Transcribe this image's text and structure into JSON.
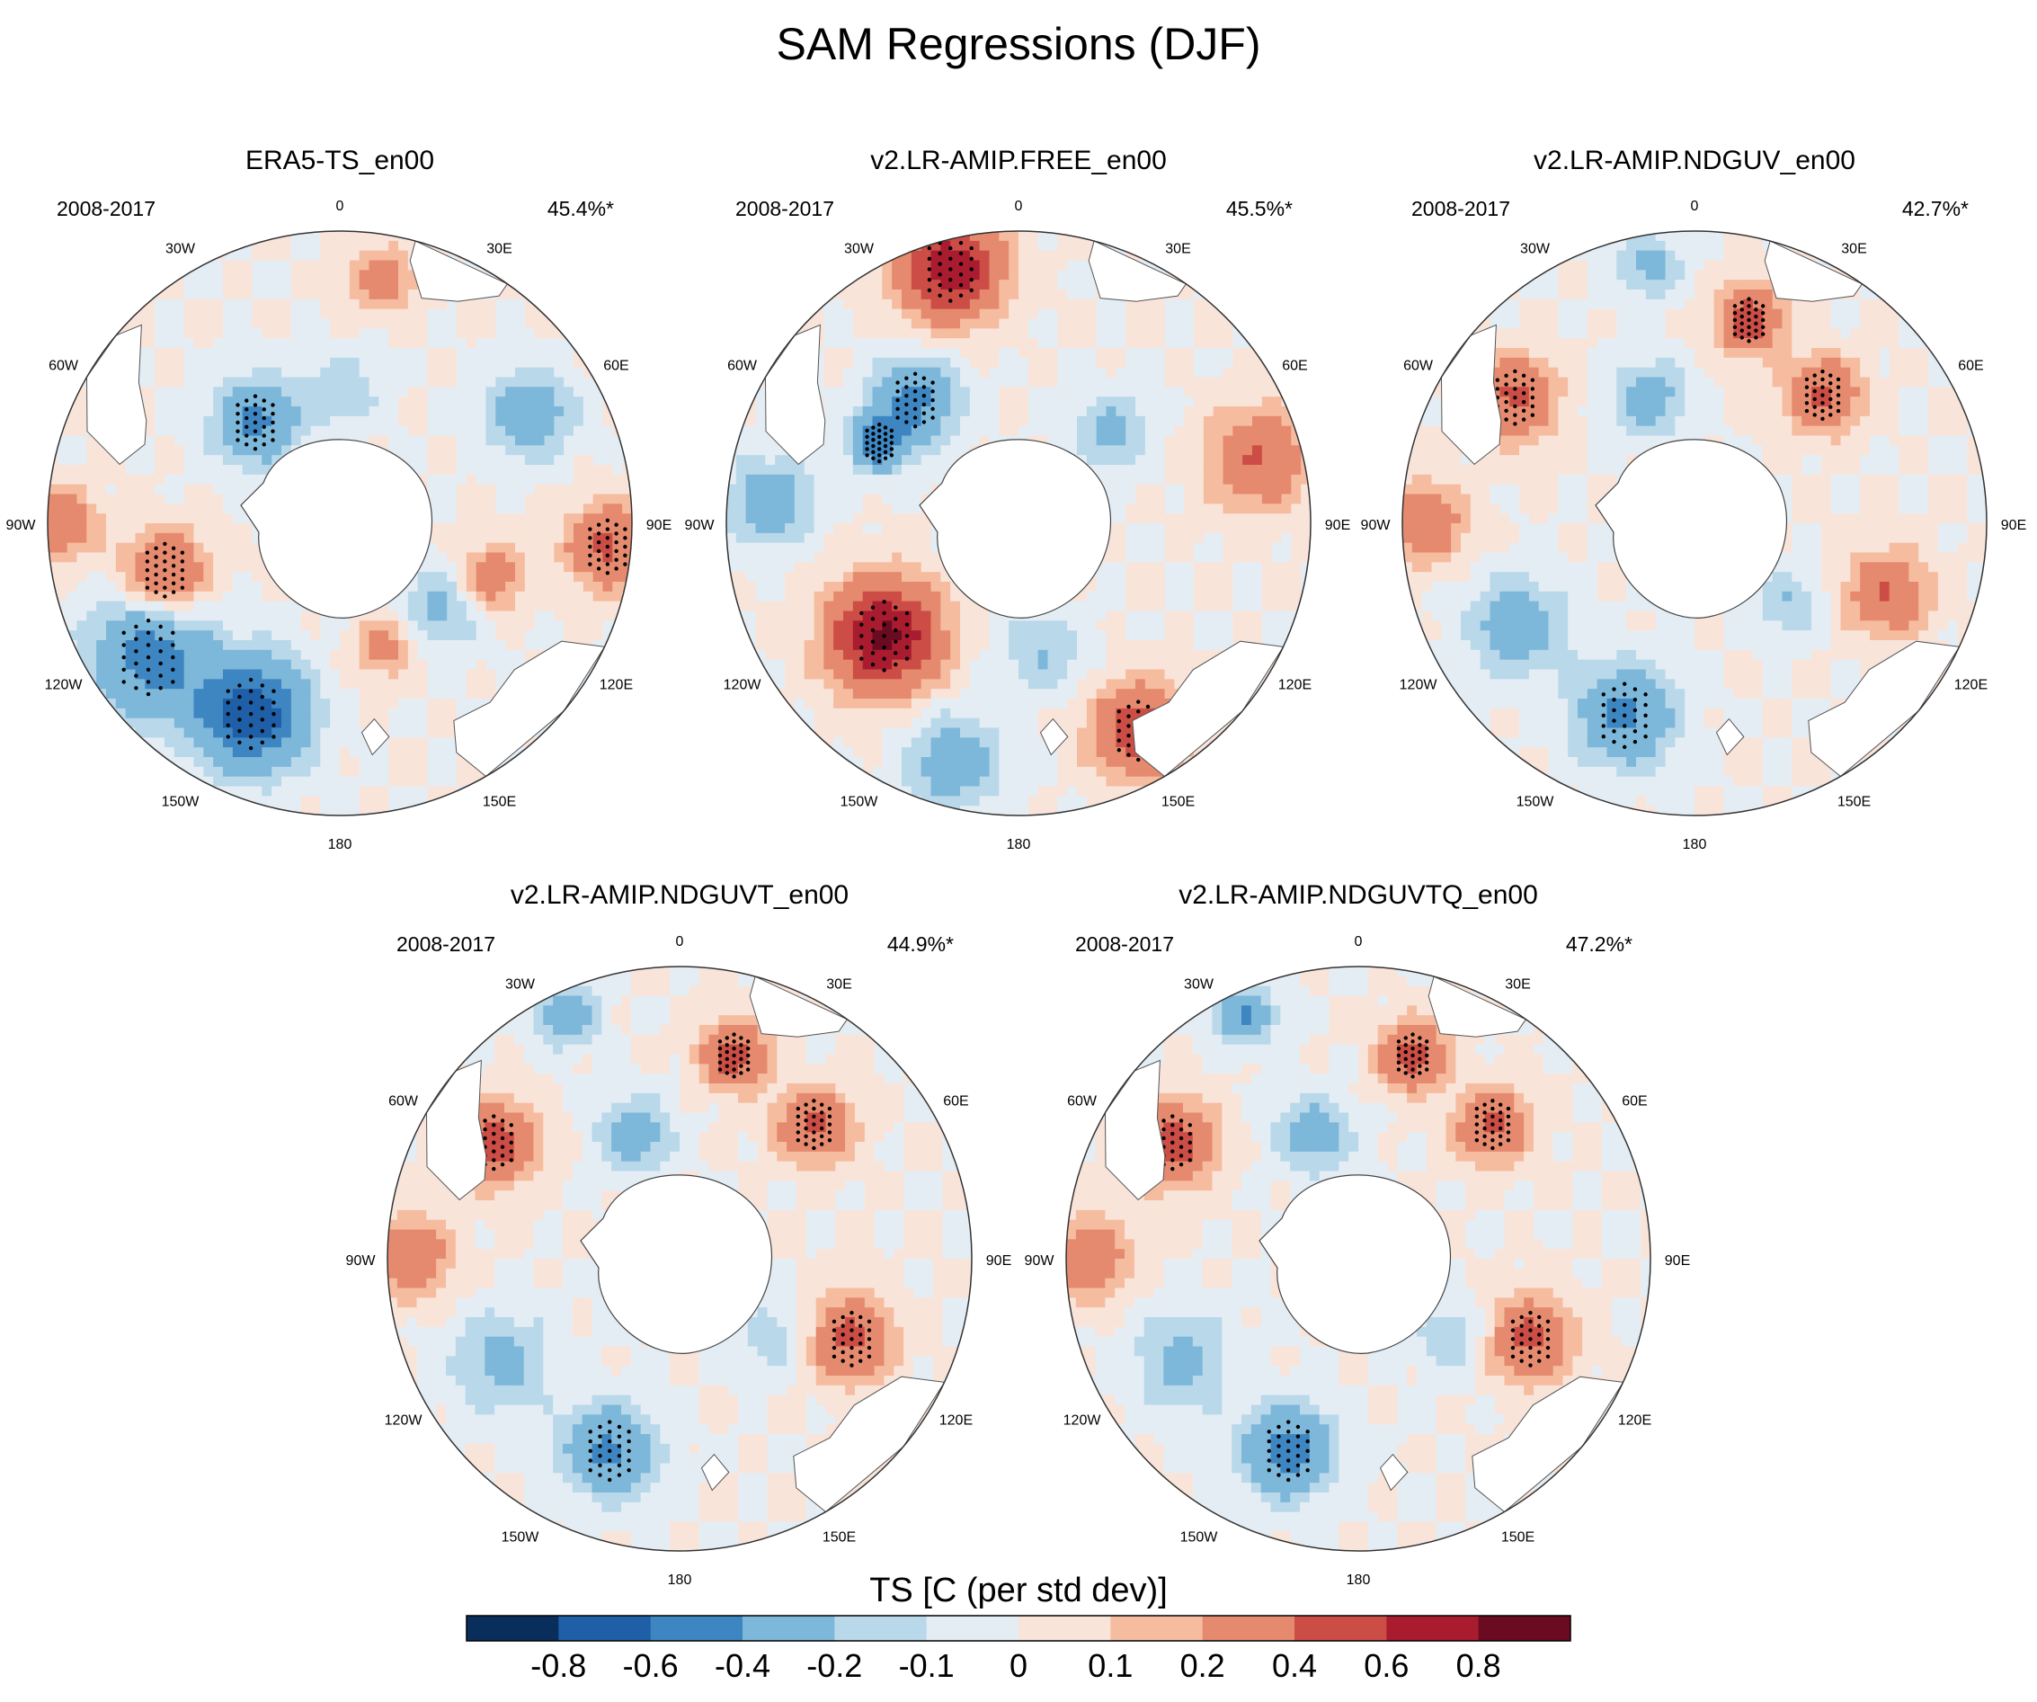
{
  "figure": {
    "title": "SAM Regressions (DJF)",
    "colorbar": {
      "label": "TS [C (per std dev)]",
      "colors": [
        "#0a2e5c",
        "#1f5fa8",
        "#3d86c2",
        "#7db7d9",
        "#b9d8ea",
        "#e4edf4",
        "#f9e4da",
        "#f6bca0",
        "#e58a6e",
        "#cc4d45",
        "#a91c2f",
        "#6a0b21"
      ],
      "tick_labels": [
        "-0.8",
        "-0.6",
        "-0.4",
        "-0.2",
        "-0.1",
        "0",
        "0.1",
        "0.2",
        "0.4",
        "0.6",
        "0.8"
      ]
    },
    "lon_labels": [
      "0",
      "30E",
      "60E",
      "90E",
      "120E",
      "150E",
      "180",
      "150W",
      "120W",
      "90W",
      "60W",
      "30W"
    ],
    "panels": [
      {
        "title": "ERA5-TS_en00",
        "period": "2008-2017",
        "pct": "45.4%*",
        "blobs": [
          {
            "lon": -105,
            "r": 0.62,
            "s": 0.1,
            "v": 0.45
          },
          {
            "lon": -155,
            "r": 0.72,
            "s": 0.13,
            "v": -0.75
          },
          {
            "lon": -125,
            "r": 0.8,
            "s": 0.14,
            "v": -0.5
          },
          {
            "lon": -40,
            "r": 0.45,
            "s": 0.1,
            "v": -0.45
          },
          {
            "lon": 60,
            "r": 0.75,
            "s": 0.1,
            "v": -0.35
          },
          {
            "lon": 95,
            "r": 0.92,
            "s": 0.1,
            "v": 0.45
          },
          {
            "lon": 110,
            "r": 0.55,
            "s": 0.08,
            "v": 0.35
          },
          {
            "lon": 130,
            "r": 0.45,
            "s": 0.1,
            "v": -0.25
          },
          {
            "lon": 10,
            "r": 0.85,
            "s": 0.08,
            "v": 0.3
          },
          {
            "lon": -90,
            "r": 0.95,
            "s": 0.08,
            "v": 0.4
          },
          {
            "lon": 160,
            "r": 0.45,
            "s": 0.07,
            "v": 0.3
          },
          {
            "lon": 0,
            "r": 0.45,
            "s": 0.09,
            "v": -0.2
          }
        ]
      },
      {
        "title": "v2.LR-AMIP.FREE_en00",
        "period": "2008-2017",
        "pct": "45.5%*",
        "blobs": [
          {
            "lon": -15,
            "r": 0.9,
            "s": 0.12,
            "v": 0.75
          },
          {
            "lon": -130,
            "r": 0.6,
            "s": 0.13,
            "v": 0.85
          },
          {
            "lon": 150,
            "r": 0.82,
            "s": 0.11,
            "v": 0.55
          },
          {
            "lon": 75,
            "r": 0.85,
            "s": 0.12,
            "v": 0.4
          },
          {
            "lon": -40,
            "r": 0.55,
            "s": 0.1,
            "v": -0.45
          },
          {
            "lon": -85,
            "r": 0.85,
            "s": 0.1,
            "v": -0.35
          },
          {
            "lon": -165,
            "r": 0.85,
            "s": 0.12,
            "v": -0.3
          },
          {
            "lon": 170,
            "r": 0.45,
            "s": 0.1,
            "v": -0.2
          },
          {
            "lon": 45,
            "r": 0.45,
            "s": 0.09,
            "v": -0.25
          },
          {
            "lon": -60,
            "r": 0.55,
            "s": 0.07,
            "v": -0.5
          }
        ]
      },
      {
        "title": "v2.LR-AMIP.NDGUV_en00",
        "period": "2008-2017",
        "pct": "42.7%*",
        "blobs": [
          {
            "lon": -160,
            "r": 0.7,
            "s": 0.12,
            "v": -0.45
          },
          {
            "lon": -120,
            "r": 0.7,
            "s": 0.12,
            "v": -0.3
          },
          {
            "lon": -55,
            "r": 0.75,
            "s": 0.1,
            "v": 0.45
          },
          {
            "lon": 15,
            "r": 0.72,
            "s": 0.08,
            "v": 0.5
          },
          {
            "lon": 45,
            "r": 0.62,
            "s": 0.09,
            "v": 0.45
          },
          {
            "lon": 110,
            "r": 0.7,
            "s": 0.1,
            "v": 0.4
          },
          {
            "lon": -90,
            "r": 0.92,
            "s": 0.1,
            "v": 0.35
          },
          {
            "lon": -20,
            "r": 0.45,
            "s": 0.09,
            "v": -0.3
          },
          {
            "lon": 130,
            "r": 0.42,
            "s": 0.08,
            "v": -0.2
          },
          {
            "lon": -10,
            "r": 0.9,
            "s": 0.08,
            "v": -0.25
          }
        ]
      },
      {
        "title": "v2.LR-AMIP.NDGUVT_en00",
        "period": "2008-2017",
        "pct": "44.9%*",
        "blobs": [
          {
            "lon": -160,
            "r": 0.7,
            "s": 0.11,
            "v": -0.45
          },
          {
            "lon": -120,
            "r": 0.7,
            "s": 0.12,
            "v": -0.25
          },
          {
            "lon": -58,
            "r": 0.75,
            "s": 0.1,
            "v": 0.5
          },
          {
            "lon": 15,
            "r": 0.72,
            "s": 0.08,
            "v": 0.5
          },
          {
            "lon": 45,
            "r": 0.65,
            "s": 0.09,
            "v": 0.45
          },
          {
            "lon": 115,
            "r": 0.65,
            "s": 0.1,
            "v": 0.45
          },
          {
            "lon": -90,
            "r": 0.92,
            "s": 0.1,
            "v": 0.35
          },
          {
            "lon": -20,
            "r": 0.45,
            "s": 0.09,
            "v": -0.3
          },
          {
            "lon": 130,
            "r": 0.42,
            "s": 0.08,
            "v": -0.2
          },
          {
            "lon": -25,
            "r": 0.92,
            "s": 0.07,
            "v": -0.4
          }
        ]
      },
      {
        "title": "v2.LR-AMIP.NDGUVTQ_en00",
        "period": "2008-2017",
        "pct": "47.2%*",
        "blobs": [
          {
            "lon": -160,
            "r": 0.7,
            "s": 0.11,
            "v": -0.5
          },
          {
            "lon": -120,
            "r": 0.7,
            "s": 0.12,
            "v": -0.25
          },
          {
            "lon": -58,
            "r": 0.75,
            "s": 0.1,
            "v": 0.5
          },
          {
            "lon": 15,
            "r": 0.72,
            "s": 0.08,
            "v": 0.5
          },
          {
            "lon": 45,
            "r": 0.65,
            "s": 0.09,
            "v": 0.45
          },
          {
            "lon": 115,
            "r": 0.65,
            "s": 0.1,
            "v": 0.45
          },
          {
            "lon": -90,
            "r": 0.92,
            "s": 0.1,
            "v": 0.35
          },
          {
            "lon": -20,
            "r": 0.45,
            "s": 0.09,
            "v": -0.3
          },
          {
            "lon": 130,
            "r": 0.42,
            "s": 0.08,
            "v": -0.2
          },
          {
            "lon": -25,
            "r": 0.92,
            "s": 0.07,
            "v": -0.4
          }
        ]
      }
    ]
  }
}
